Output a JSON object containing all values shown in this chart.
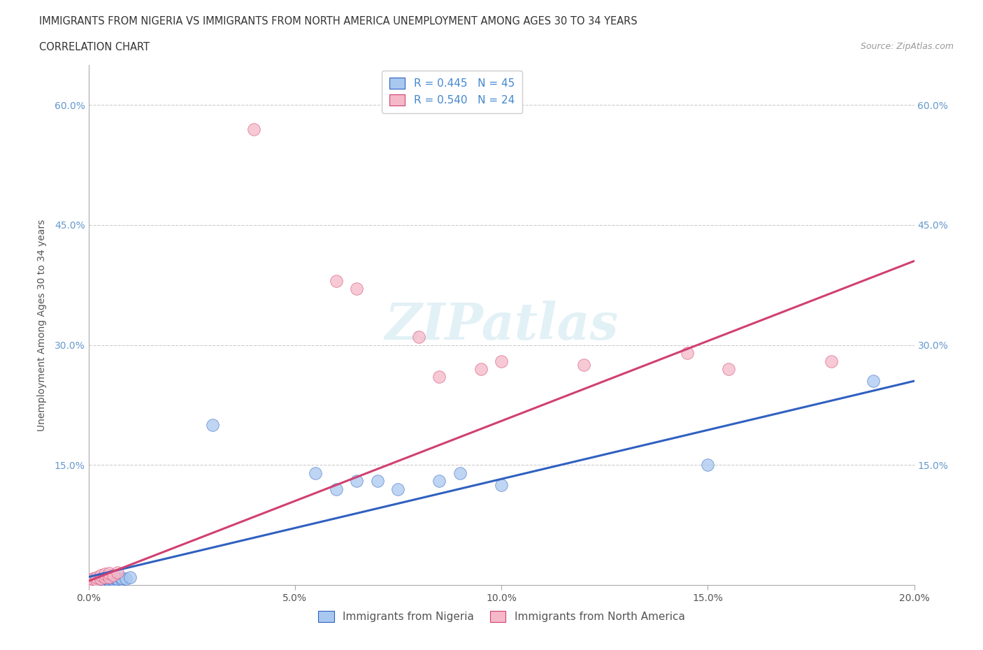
{
  "title_line1": "IMMIGRANTS FROM NIGERIA VS IMMIGRANTS FROM NORTH AMERICA UNEMPLOYMENT AMONG AGES 30 TO 34 YEARS",
  "title_line2": "CORRELATION CHART",
  "source_text": "Source: ZipAtlas.com",
  "ylabel": "Unemployment Among Ages 30 to 34 years",
  "xlim": [
    0.0,
    0.2
  ],
  "ylim": [
    0.0,
    0.65
  ],
  "xticks": [
    0.0,
    0.05,
    0.1,
    0.15,
    0.2
  ],
  "yticks": [
    0.0,
    0.15,
    0.3,
    0.45,
    0.6
  ],
  "xtick_labels": [
    "0.0%",
    "5.0%",
    "10.0%",
    "15.0%",
    "20.0%"
  ],
  "ytick_labels": [
    "",
    "15.0%",
    "30.0%",
    "45.0%",
    "60.0%"
  ],
  "legend_label1": "Immigrants from Nigeria",
  "legend_label2": "Immigrants from North America",
  "R1": 0.445,
  "N1": 45,
  "R2": 0.54,
  "N2": 24,
  "color_blue": "#A8C8F0",
  "color_pink": "#F5B8C8",
  "line_color_blue": "#3060C0",
  "line_color_pink": "#D04070",
  "watermark": "ZIPatlas",
  "nigeria_x": [
    0.0,
    0.001,
    0.001,
    0.001,
    0.001,
    0.001,
    0.002,
    0.002,
    0.002,
    0.002,
    0.002,
    0.002,
    0.003,
    0.003,
    0.003,
    0.003,
    0.003,
    0.003,
    0.004,
    0.004,
    0.004,
    0.004,
    0.005,
    0.005,
    0.005,
    0.006,
    0.006,
    0.006,
    0.007,
    0.007,
    0.008,
    0.008,
    0.009,
    0.01,
    0.03,
    0.055,
    0.06,
    0.065,
    0.07,
    0.075,
    0.085,
    0.09,
    0.1,
    0.15,
    0.19
  ],
  "nigeria_y": [
    0.005,
    0.003,
    0.004,
    0.005,
    0.006,
    0.007,
    0.003,
    0.004,
    0.005,
    0.006,
    0.007,
    0.008,
    0.003,
    0.004,
    0.005,
    0.006,
    0.007,
    0.008,
    0.004,
    0.005,
    0.006,
    0.008,
    0.005,
    0.006,
    0.008,
    0.005,
    0.007,
    0.009,
    0.006,
    0.008,
    0.007,
    0.009,
    0.008,
    0.01,
    0.2,
    0.14,
    0.12,
    0.13,
    0.13,
    0.12,
    0.13,
    0.14,
    0.125,
    0.15,
    0.255
  ],
  "northamerica_x": [
    0.0,
    0.001,
    0.001,
    0.002,
    0.002,
    0.003,
    0.003,
    0.004,
    0.004,
    0.005,
    0.005,
    0.006,
    0.007,
    0.04,
    0.06,
    0.065,
    0.08,
    0.085,
    0.095,
    0.1,
    0.12,
    0.145,
    0.155,
    0.18
  ],
  "northamerica_y": [
    0.005,
    0.005,
    0.008,
    0.006,
    0.01,
    0.008,
    0.012,
    0.01,
    0.014,
    0.01,
    0.015,
    0.012,
    0.016,
    0.57,
    0.38,
    0.37,
    0.31,
    0.26,
    0.27,
    0.28,
    0.275,
    0.29,
    0.27,
    0.28
  ],
  "blue_line_x": [
    0.0,
    0.2
  ],
  "blue_line_y": [
    0.01,
    0.255
  ],
  "pink_line_x": [
    0.0,
    0.2
  ],
  "pink_line_y": [
    0.005,
    0.405
  ]
}
